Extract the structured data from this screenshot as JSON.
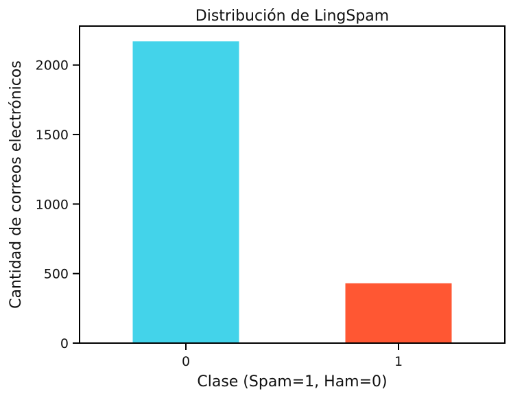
{
  "chart_data": {
    "type": "bar",
    "title": "Distribución de LingSpam",
    "xlabel": "Clase (Spam=1, Ham=0)",
    "ylabel": "Cantidad de correos electrónicos",
    "categories": [
      "0",
      "1"
    ],
    "values": [
      2170,
      430
    ],
    "colors": [
      "#43D3EA",
      "#FF5733"
    ],
    "ylim": [
      0,
      2280
    ],
    "yticks": [
      0,
      500,
      1000,
      1500,
      2000
    ],
    "grid": false
  }
}
